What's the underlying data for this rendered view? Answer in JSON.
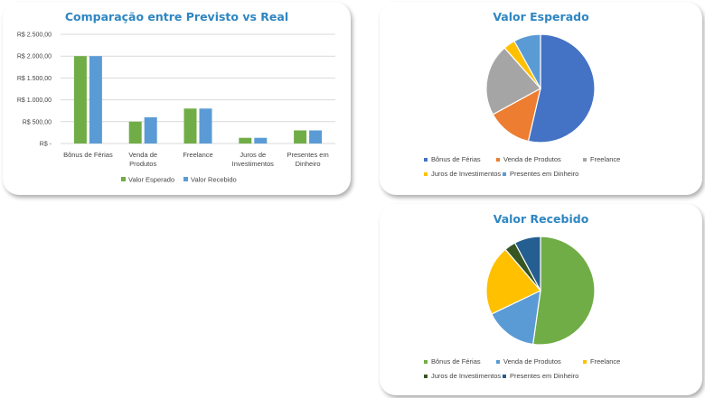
{
  "colors": {
    "esperado": "#70ad47",
    "recebido": "#5b9bd5",
    "title": "#2e86c1",
    "pie1": [
      "#4472c4",
      "#ed7d31",
      "#a5a5a5",
      "#ffc000",
      "#5b9bd5"
    ],
    "pie2": [
      "#70ad47",
      "#5b9bd5",
      "#ffc000",
      "#375623",
      "#255e91"
    ]
  },
  "chart_data": [
    {
      "type": "bar",
      "title": "Comparação entre Previsto vs Real",
      "categories": [
        [
          "Bônus de Férias"
        ],
        [
          "Venda de",
          "Produtos"
        ],
        [
          "Freelance"
        ],
        [
          "Juros de",
          "Investimentos"
        ],
        [
          "Presentes em",
          "Dinheiro"
        ]
      ],
      "series": [
        {
          "name": "Valor Esperado",
          "values": [
            2000,
            500,
            800,
            130,
            300
          ]
        },
        {
          "name": "Valor Recebido",
          "values": [
            2000,
            600,
            800,
            130,
            300
          ]
        }
      ],
      "ylim": [
        0,
        2500
      ],
      "yticks": [
        {
          "value": 2500,
          "label": "R$ 2.500,00"
        },
        {
          "value": 2000,
          "label": "R$ 2.000,00"
        },
        {
          "value": 1500,
          "label": "R$ 1.500,00"
        },
        {
          "value": 1000,
          "label": "R$ 1.000,00"
        },
        {
          "value": 500,
          "label": "R$ 500,00"
        },
        {
          "value": 0,
          "label": "R$ -"
        }
      ],
      "grid": true,
      "legend": "bottom"
    },
    {
      "type": "pie",
      "title": "Valor Esperado",
      "labels": [
        "Bônus de Férias",
        "Venda de Produtos",
        "Freelance",
        "Juros de Investimentos",
        "Presentes em Dinheiro"
      ],
      "values": [
        2000,
        500,
        800,
        130,
        300
      ],
      "legend": "bottom"
    },
    {
      "type": "pie",
      "title": "Valor Recebido",
      "labels": [
        "Bônus de Férias",
        "Venda de Produtos",
        "Freelance",
        "Juros de Investimentos",
        "Presentes em Dinheiro"
      ],
      "values": [
        2000,
        600,
        800,
        130,
        300
      ],
      "legend": "bottom"
    }
  ]
}
